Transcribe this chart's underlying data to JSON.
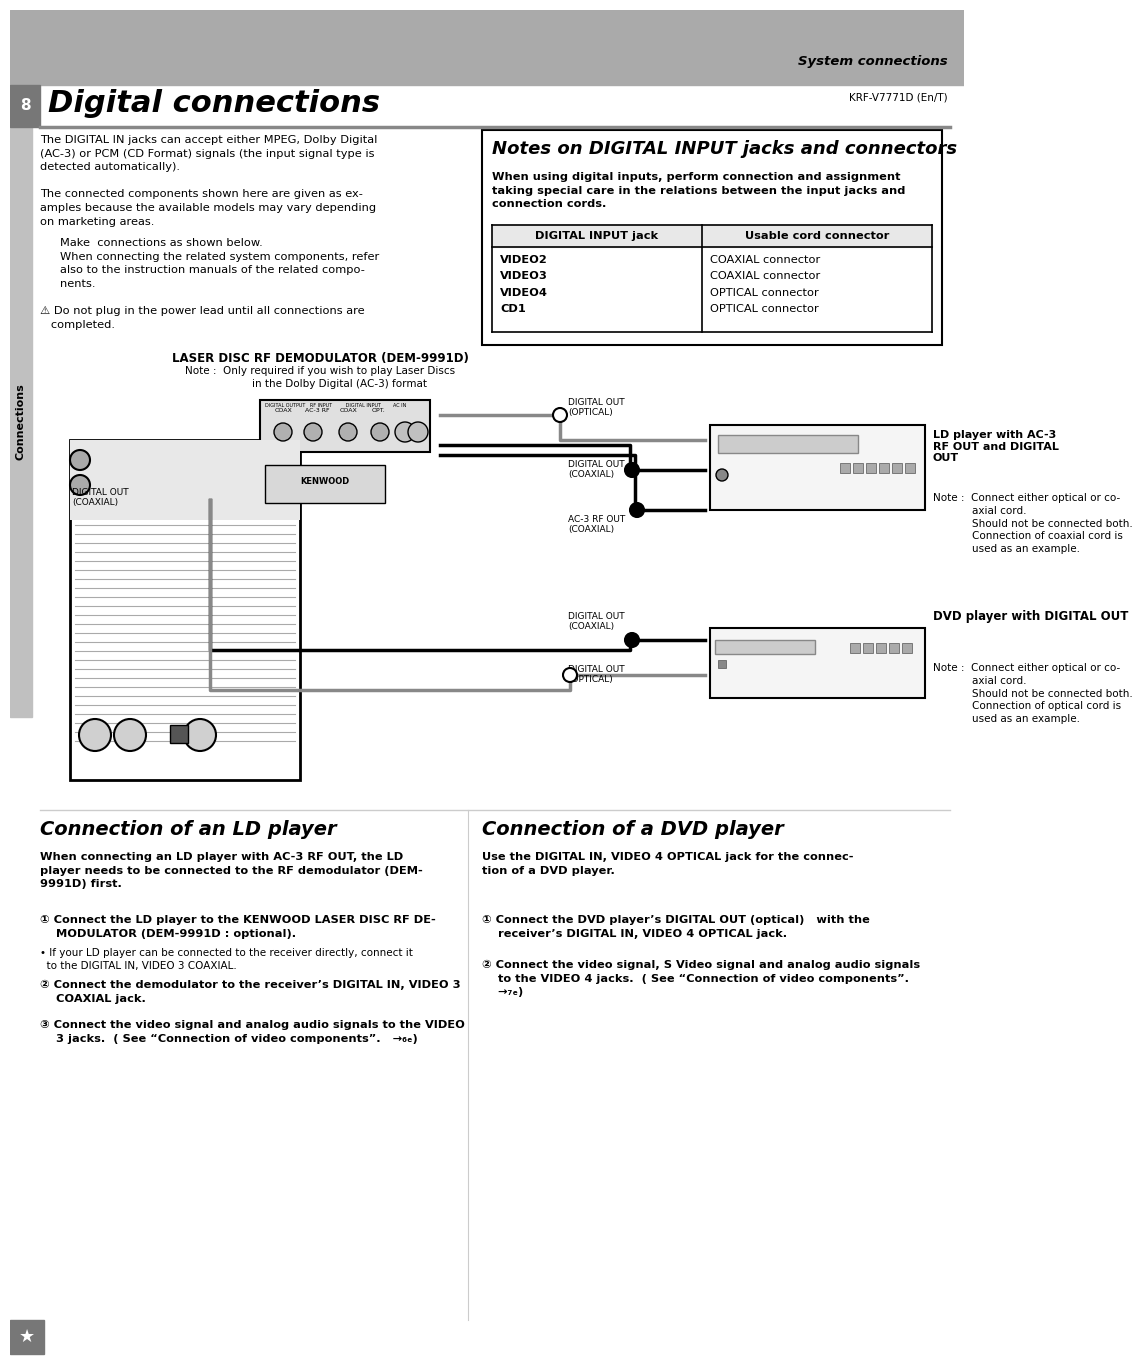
{
  "page_bg": "#ffffff",
  "header_bg": "#aaaaaa",
  "header_text": "System connections",
  "header_subtext": "KRF-V7771D (En/T)",
  "title_text": "Digital connections",
  "page_number": "8",
  "sidebar_text": "Connections",
  "note_box_title": "Notes on DIGITAL INPUT jacks and connectors",
  "note_box_text": "When using digital inputs, perform connection and assignment\ntaking special care in the relations between the input jacks and\nconnection cords.",
  "table_header_left": "DIGITAL INPUT jack",
  "table_header_right": "Usable cord connector",
  "table_rows": [
    [
      "VIDEO2",
      "COAXIAL connector"
    ],
    [
      "VIDEO3",
      "COAXIAL connector"
    ],
    [
      "VIDEO4",
      "OPTICAL connector"
    ],
    [
      "CD1",
      "OPTICAL connector"
    ]
  ],
  "diagram_title": "LASER DISC RF DEMODULATOR (DEM-9991D)",
  "ld_label": "LD player with AC-3\nRF OUT and DIGITAL\nOUT",
  "dvd_label": "DVD player with DIGITAL OUT",
  "ld_note": "Note :  Connect either optical or co-\n            axial cord.\n            Should not be connected both.\n            Connection of coaxial cord is\n            used as an example.",
  "dvd_note": "Note :  Connect either optical or co-\n            axial cord.\n            Should not be connected both.\n            Connection of optical cord is\n            used as an example.",
  "section_ld_title": "Connection of an LD player",
  "section_ld_text1": "When connecting an LD player with AC-3 RF OUT, the LD\nplayer needs to be connected to the RF demodulator (DEM-\n9991D) first.",
  "section_ld_bullet1_bold": "① Connect the LD player to the KENWOOD LASER DISC RF DE-\n    MODULATOR (DEM-9991D : optional).",
  "section_ld_bullet1b": "• If your LD player can be connected to the receiver directly, connect it\n  to the DIGITAL IN, VIDEO 3 COAXIAL.",
  "section_ld_bullet2": "② Connect the demodulator to the receiver’s DIGITAL IN, VIDEO 3\n    COAXIAL jack.",
  "section_ld_bullet3": "③ Connect the video signal and analog audio signals to the VIDEO\n    3 jacks.  ( See “Connection of video components”.   →₆ₑ)",
  "section_dvd_title": "Connection of a DVD player",
  "section_dvd_text1": "Use the DIGITAL IN, VIDEO 4 OPTICAL jack for the connec-\ntion of a DVD player.",
  "section_dvd_bullet1": "① Connect the DVD player’s DIGITAL OUT (optical)   with the\n    receiver’s DIGITAL IN, VIDEO 4 OPTICAL jack.",
  "section_dvd_bullet2": "② Connect the video signal, S Video signal and analog audio signals\n    to the VIDEO 4 jacks.  ( See “Connection of video components”.\n    →₇ₑ)",
  "footer_star": "★"
}
